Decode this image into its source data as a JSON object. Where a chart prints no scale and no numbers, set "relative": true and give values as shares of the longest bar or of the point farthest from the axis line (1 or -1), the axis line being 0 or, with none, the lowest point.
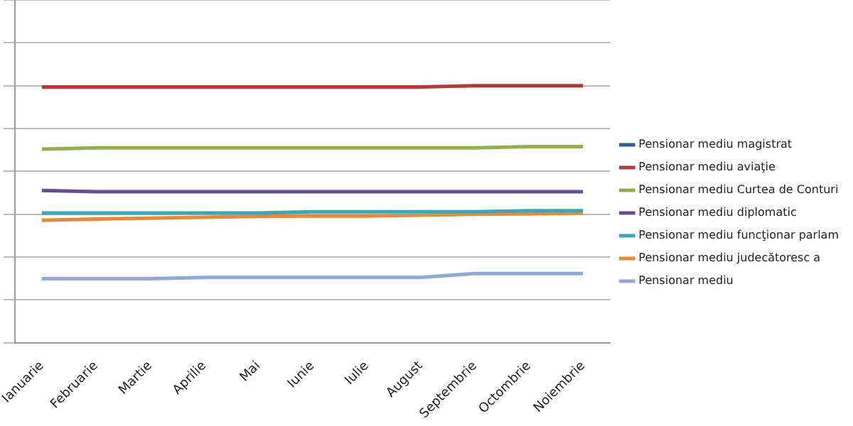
{
  "chart_data": {
    "type": "line",
    "relative": true,
    "grid": "y",
    "legend": "right",
    "marker": "none",
    "line_style": "solid",
    "categories": [
      "Ianuarie",
      "Februarie",
      "Martie",
      "Aprilie",
      "Mai",
      "Iunie",
      "Iulie",
      "August",
      "Septembrie",
      "Octombrie",
      "Noiembrie"
    ],
    "series": [
      {
        "name": "Pensionar mediu magistrat",
        "color": "#2e5f9e",
        "values": [
          null,
          null,
          null,
          null,
          null,
          null,
          null,
          null,
          null,
          null,
          null
        ]
      },
      {
        "name": "Pensionar mediu aviaţie",
        "color": "#b03c3c",
        "values": [
          0.994,
          0.994,
          0.994,
          0.994,
          0.994,
          0.994,
          0.994,
          0.994,
          1,
          1,
          1
        ]
      },
      {
        "name": "Pensionar mediu Curtea de Conturi",
        "color": "#8fb04a",
        "values": [
          0.704,
          0.71,
          0.71,
          0.71,
          0.71,
          0.71,
          0.71,
          0.71,
          0.71,
          0.716,
          0.716
        ]
      },
      {
        "name": "Pensionar mediu diplomatic",
        "color": "#6a4c93",
        "values": [
          0.511,
          0.505,
          0.505,
          0.505,
          0.505,
          0.505,
          0.505,
          0.505,
          0.505,
          0.505,
          0.505
        ]
      },
      {
        "name": "Pensionar mediu funcţionar parlam",
        "color": "#3ea5b6",
        "values": [
          0.406,
          0.406,
          0.406,
          0.406,
          0.406,
          0.412,
          0.412,
          0.412,
          0.412,
          0.417,
          0.417
        ]
      },
      {
        "name": "Pensionar mediu judecătoresc a",
        "color": "#e8893a",
        "values": [
          0.372,
          0.378,
          0.382,
          0.386,
          0.39,
          0.392,
          0.392,
          0.396,
          0.4,
          0.402,
          0.406
        ]
      },
      {
        "name": "Pensionar mediu",
        "color": "#8eaadc",
        "values": [
          0.099,
          0.099,
          0.099,
          0.105,
          0.105,
          0.105,
          0.105,
          0.105,
          0.123,
          0.123,
          0.123
        ]
      }
    ]
  }
}
